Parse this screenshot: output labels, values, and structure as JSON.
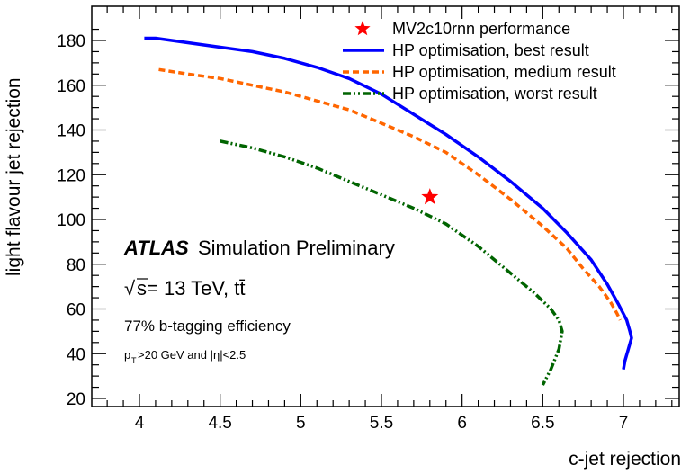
{
  "chart_data": {
    "type": "line",
    "xlabel": "c-jet rejection",
    "ylabel": "light flavour jet rejection",
    "xlim": [
      3.75,
      7.35
    ],
    "ylim": [
      18,
      190
    ],
    "x_ticks": [
      "4",
      "4.5",
      "5",
      "5.5",
      "6",
      "6.5",
      "7"
    ],
    "y_ticks": [
      "20",
      "40",
      "60",
      "80",
      "100",
      "120",
      "140",
      "160",
      "180"
    ],
    "grid": false,
    "legend_placement": "top-right",
    "series": [
      {
        "name": "HP optimisation, best result",
        "color": "#0000ff",
        "style": "solid",
        "points": [
          [
            4.03,
            181
          ],
          [
            4.1,
            181
          ],
          [
            4.3,
            179
          ],
          [
            4.5,
            177
          ],
          [
            4.7,
            175
          ],
          [
            4.9,
            172
          ],
          [
            5.1,
            168
          ],
          [
            5.3,
            163
          ],
          [
            5.5,
            156
          ],
          [
            5.7,
            147
          ],
          [
            5.9,
            138
          ],
          [
            6.1,
            128
          ],
          [
            6.3,
            117
          ],
          [
            6.5,
            105
          ],
          [
            6.65,
            94
          ],
          [
            6.8,
            82
          ],
          [
            6.9,
            71
          ],
          [
            6.97,
            62
          ],
          [
            7.02,
            55
          ],
          [
            7.04,
            50
          ],
          [
            7.05,
            47
          ],
          [
            7.03,
            42
          ],
          [
            7.01,
            37
          ],
          [
            7.0,
            33
          ]
        ]
      },
      {
        "name": "HP optimisation, medium result",
        "color": "#ff6600",
        "style": "dashed",
        "points": [
          [
            4.12,
            167
          ],
          [
            4.3,
            165
          ],
          [
            4.5,
            163
          ],
          [
            4.7,
            160
          ],
          [
            4.9,
            157
          ],
          [
            5.1,
            153
          ],
          [
            5.3,
            149
          ],
          [
            5.5,
            143
          ],
          [
            5.7,
            137
          ],
          [
            5.9,
            130
          ],
          [
            6.1,
            120
          ],
          [
            6.3,
            109
          ],
          [
            6.5,
            97
          ],
          [
            6.65,
            87
          ],
          [
            6.75,
            78
          ],
          [
            6.85,
            70
          ],
          [
            6.92,
            63
          ],
          [
            6.96,
            58
          ],
          [
            6.98,
            55
          ]
        ]
      },
      {
        "name": "HP optimisation, worst result",
        "color": "#006400",
        "style": "dashdot",
        "points": [
          [
            4.5,
            135
          ],
          [
            4.7,
            132
          ],
          [
            4.9,
            128
          ],
          [
            5.1,
            123
          ],
          [
            5.3,
            117
          ],
          [
            5.5,
            111
          ],
          [
            5.7,
            105
          ],
          [
            5.9,
            98
          ],
          [
            6.1,
            88
          ],
          [
            6.3,
            76
          ],
          [
            6.45,
            67
          ],
          [
            6.55,
            60
          ],
          [
            6.6,
            55
          ],
          [
            6.62,
            50
          ],
          [
            6.6,
            42
          ],
          [
            6.55,
            33
          ],
          [
            6.5,
            26
          ]
        ]
      }
    ],
    "markers": [
      {
        "name": "MV2c10rnn performance",
        "x": 5.8,
        "y": 110,
        "color": "#ff0000",
        "symbol": "star"
      }
    ]
  },
  "annotations": {
    "atlas": "ATLAS",
    "simulation": "Simulation Preliminary",
    "sqrt": "√",
    "energy": "s= 13 TeV, tt̄",
    "efficiency": "77% b-tagging efficiency",
    "pt_p": "p",
    "pt_sub": "T",
    "cuts": ">20 GeV and |η|<2.5"
  }
}
